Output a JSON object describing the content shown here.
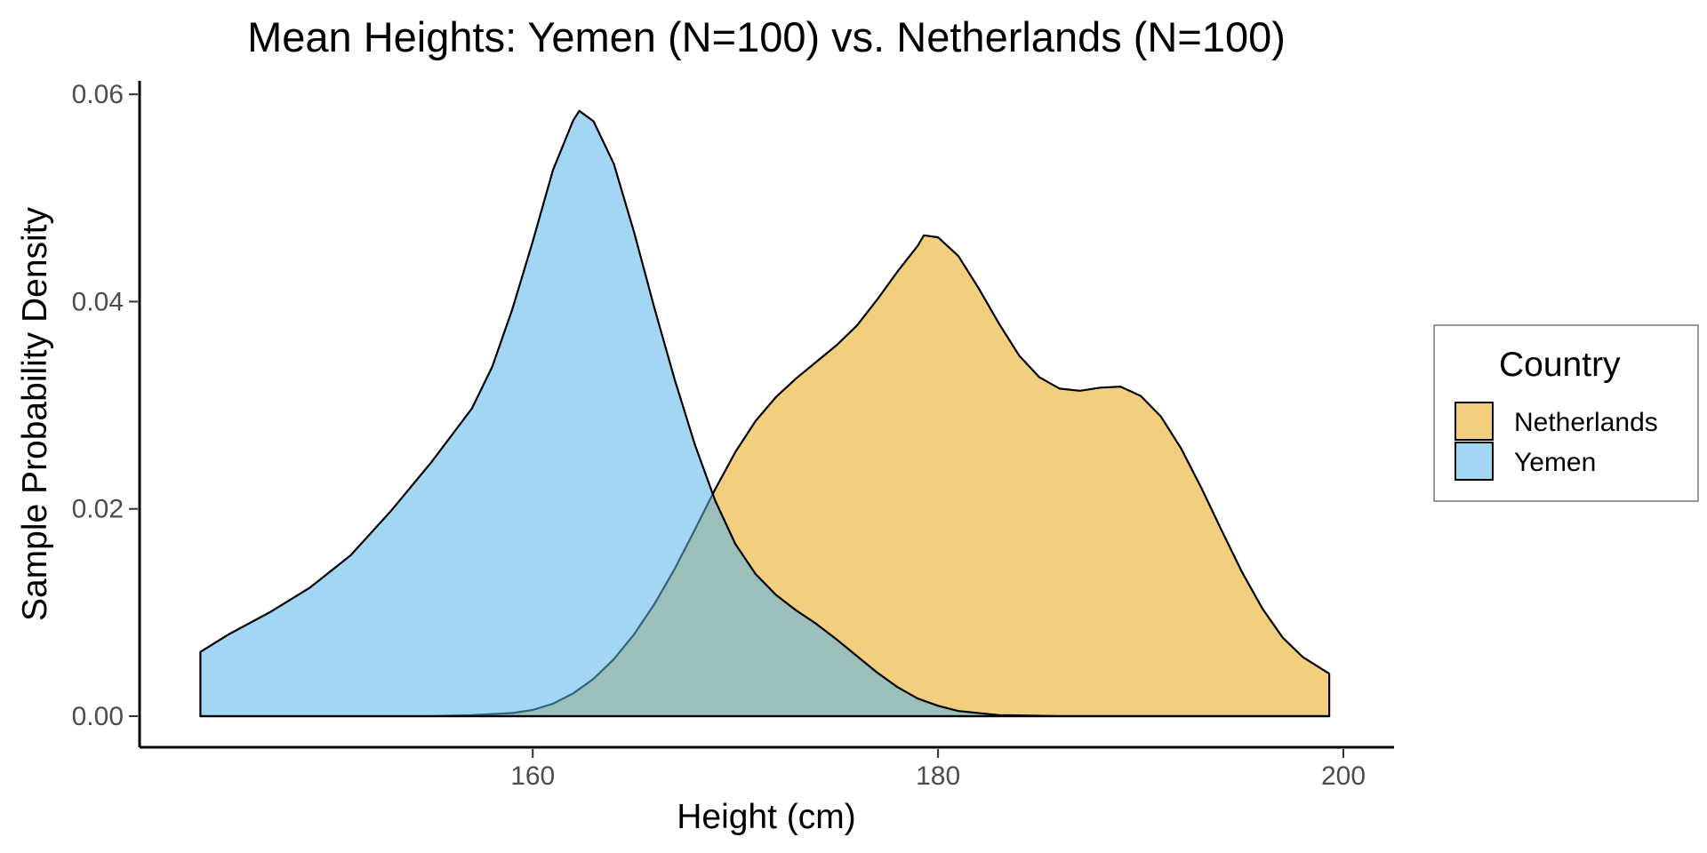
{
  "chart_data": {
    "type": "area",
    "chart_subtype": "density",
    "title": "Mean Heights: Yemen (N=100) vs. Netherlands (N=100)",
    "xlabel": "Height (cm)",
    "ylabel": "Sample Probability Density",
    "xlim": [
      140.6,
      202.5
    ],
    "ylim": [
      -0.003,
      0.0613
    ],
    "x_ticks": [
      160,
      180,
      200
    ],
    "x_tick_labels": [
      "160",
      "180",
      "200"
    ],
    "y_ticks": [
      0.0,
      0.02,
      0.04,
      0.06
    ],
    "y_tick_labels": [
      "0.00",
      "0.02",
      "0.04",
      "0.06"
    ],
    "grid": false,
    "legend": {
      "title": "Country",
      "position": "right",
      "entries": [
        "Netherlands",
        "Yemen"
      ]
    },
    "series": [
      {
        "name": "Netherlands",
        "color": "#E69F00",
        "fill_opacity": 0.5,
        "points": [
          [
            143.6,
            0.0
          ],
          [
            150.0,
            0.0
          ],
          [
            155.0,
            0.0
          ],
          [
            157.0,
            0.0001
          ],
          [
            159.0,
            0.0003
          ],
          [
            160.0,
            0.0006
          ],
          [
            161.0,
            0.0012
          ],
          [
            162.0,
            0.0022
          ],
          [
            163.0,
            0.0036
          ],
          [
            164.0,
            0.0055
          ],
          [
            165.0,
            0.0079
          ],
          [
            166.0,
            0.0108
          ],
          [
            167.0,
            0.0142
          ],
          [
            168.0,
            0.018
          ],
          [
            169.0,
            0.0219
          ],
          [
            170.0,
            0.0255
          ],
          [
            171.0,
            0.0285
          ],
          [
            172.0,
            0.0308
          ],
          [
            173.0,
            0.0326
          ],
          [
            174.0,
            0.0342
          ],
          [
            175.0,
            0.0358
          ],
          [
            176.0,
            0.0377
          ],
          [
            177.0,
            0.0402
          ],
          [
            178.0,
            0.0429
          ],
          [
            179.0,
            0.0454
          ],
          [
            179.3,
            0.0464
          ],
          [
            180.0,
            0.0462
          ],
          [
            181.0,
            0.0444
          ],
          [
            182.0,
            0.0413
          ],
          [
            183.0,
            0.0379
          ],
          [
            184.0,
            0.0348
          ],
          [
            185.0,
            0.0327
          ],
          [
            186.0,
            0.0316
          ],
          [
            187.0,
            0.0314
          ],
          [
            188.0,
            0.0317
          ],
          [
            189.0,
            0.0318
          ],
          [
            190.0,
            0.0309
          ],
          [
            191.0,
            0.0289
          ],
          [
            192.0,
            0.0258
          ],
          [
            193.0,
            0.022
          ],
          [
            194.0,
            0.0179
          ],
          [
            195.0,
            0.0139
          ],
          [
            196.0,
            0.0104
          ],
          [
            197.0,
            0.0076
          ],
          [
            198.0,
            0.0057
          ],
          [
            199.3,
            0.0041
          ]
        ]
      },
      {
        "name": "Yemen",
        "color": "#56B4E9",
        "fill_opacity": 0.55,
        "points": [
          [
            143.6,
            0.0062
          ],
          [
            145.0,
            0.0079
          ],
          [
            147.0,
            0.01
          ],
          [
            149.0,
            0.0124
          ],
          [
            151.0,
            0.0155
          ],
          [
            153.0,
            0.0198
          ],
          [
            155.0,
            0.0245
          ],
          [
            157.0,
            0.0297
          ],
          [
            158.0,
            0.0337
          ],
          [
            159.0,
            0.0393
          ],
          [
            160.0,
            0.0458
          ],
          [
            161.0,
            0.0527
          ],
          [
            162.0,
            0.0575
          ],
          [
            162.3,
            0.0584
          ],
          [
            163.0,
            0.0574
          ],
          [
            164.0,
            0.0533
          ],
          [
            165.0,
            0.0467
          ],
          [
            166.0,
            0.0394
          ],
          [
            167.0,
            0.0325
          ],
          [
            168.0,
            0.0262
          ],
          [
            169.0,
            0.0208
          ],
          [
            170.0,
            0.0166
          ],
          [
            171.0,
            0.0137
          ],
          [
            172.0,
            0.0117
          ],
          [
            173.0,
            0.0102
          ],
          [
            174.0,
            0.0089
          ],
          [
            175.0,
            0.0074
          ],
          [
            176.0,
            0.0058
          ],
          [
            177.0,
            0.0042
          ],
          [
            178.0,
            0.0028
          ],
          [
            179.0,
            0.0017
          ],
          [
            180.0,
            0.001
          ],
          [
            181.0,
            0.0005
          ],
          [
            183.0,
            0.0001
          ],
          [
            186.0,
            0.0
          ],
          [
            190.0,
            0.0
          ],
          [
            199.3,
            0.0
          ]
        ]
      }
    ]
  }
}
